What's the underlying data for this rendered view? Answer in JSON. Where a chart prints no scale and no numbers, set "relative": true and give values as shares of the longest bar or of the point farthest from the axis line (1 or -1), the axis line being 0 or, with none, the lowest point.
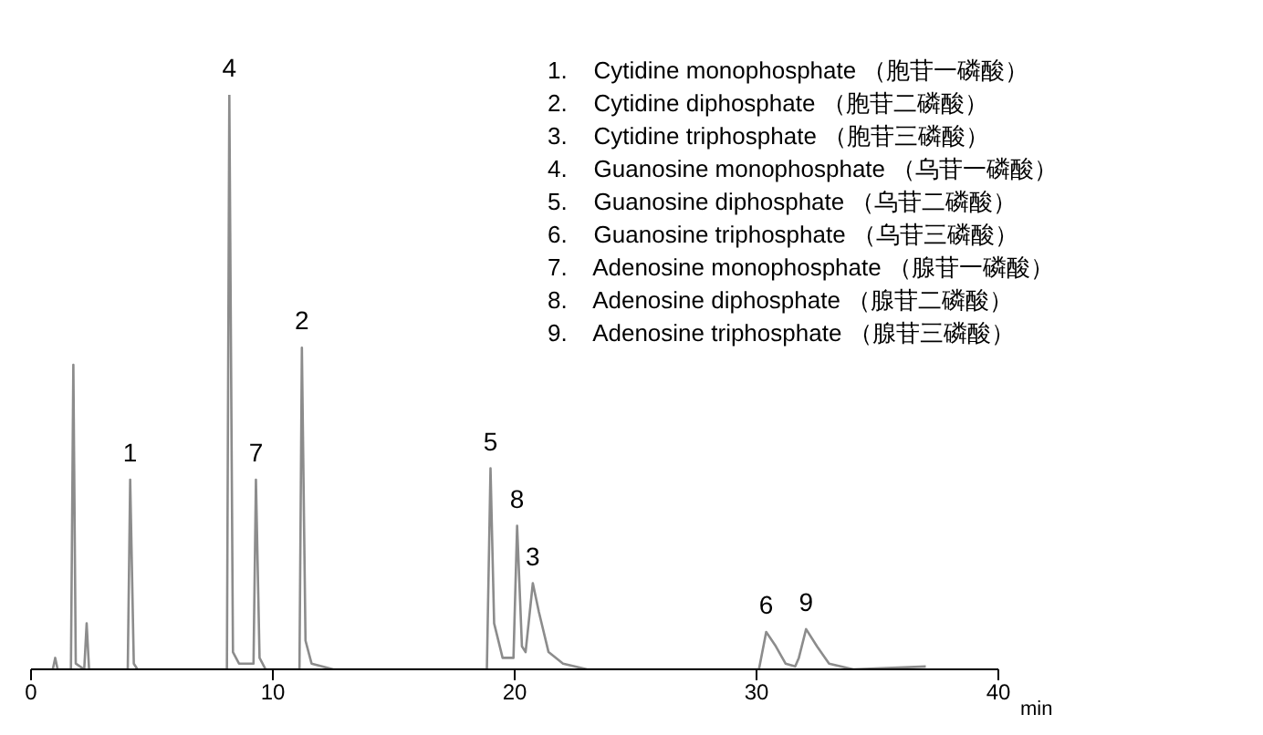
{
  "chart_data": {
    "type": "line",
    "relative": true,
    "xlabel": "min",
    "xlim": [
      0,
      40
    ],
    "xticks": [
      0,
      10,
      20,
      30,
      40
    ],
    "tick_labels": "x",
    "grid": false,
    "legend": false,
    "marker": "none",
    "line_style": "solid",
    "x": [
      0,
      0.9,
      1.0,
      1.1,
      1.65,
      1.75,
      1.85,
      2.2,
      2.3,
      2.4,
      4.0,
      4.1,
      4.25,
      4.4,
      8.1,
      8.2,
      8.35,
      8.6,
      9.2,
      9.3,
      9.45,
      9.7,
      11.1,
      11.2,
      11.35,
      11.6,
      12.5,
      14,
      18.85,
      19.0,
      19.15,
      19.5,
      19.95,
      20.1,
      20.3,
      20.45,
      20.75,
      21.0,
      21.4,
      22,
      23,
      30.1,
      30.4,
      30.8,
      31.2,
      31.6,
      31.75,
      32.05,
      32.5,
      33,
      34,
      37
    ],
    "series": [
      {
        "color": "#8c8c8c",
        "values": [
          0,
          0,
          0.02,
          0,
          0,
          0.53,
          0.01,
          0,
          0.08,
          0,
          0,
          0.33,
          0.01,
          0,
          0,
          1.0,
          0.03,
          0.01,
          0.01,
          0.33,
          0.02,
          0,
          0,
          0.56,
          0.05,
          0.01,
          0,
          0,
          0,
          0.35,
          0.08,
          0.02,
          0.02,
          0.25,
          0.04,
          0.03,
          0.15,
          0.1,
          0.03,
          0.01,
          0,
          0,
          0.065,
          0.04,
          0.01,
          0.005,
          0.02,
          0.07,
          0.04,
          0.01,
          0,
          0.005
        ]
      }
    ],
    "annotations": [
      {
        "text": "1",
        "x": 4.1,
        "y": 0.33
      },
      {
        "text": "2",
        "x": 11.2,
        "y": 0.56
      },
      {
        "text": "3",
        "x": 20.75,
        "y": 0.15
      },
      {
        "text": "4",
        "x": 8.2,
        "y": 1.0
      },
      {
        "text": "5",
        "x": 19.0,
        "y": 0.35
      },
      {
        "text": "6",
        "x": 30.4,
        "y": 0.065
      },
      {
        "text": "7",
        "x": 9.3,
        "y": 0.33
      },
      {
        "text": "8",
        "x": 20.1,
        "y": 0.25
      },
      {
        "text": "9",
        "x": 32.05,
        "y": 0.07
      },
      "1.    Cytidine monophosphate （胞苷一磷酸）",
      "2.    Cytidine diphosphate （胞苷二磷酸）",
      "3.    Cytidine triphosphate （胞苷三磷酸）",
      "4.    Guanosine monophosphate （乌苷一磷酸）",
      "5.    Guanosine diphosphate （乌苷二磷酸）",
      "6.    Guanosine triphosphate （乌苷三磷酸）",
      "7.    Adenosine monophosphate （腺苷一磷酸）",
      "8.    Adenosine diphosphate （腺苷二磷酸）",
      "9.    Adenosine triphosphate （腺苷三磷酸）"
    ]
  }
}
